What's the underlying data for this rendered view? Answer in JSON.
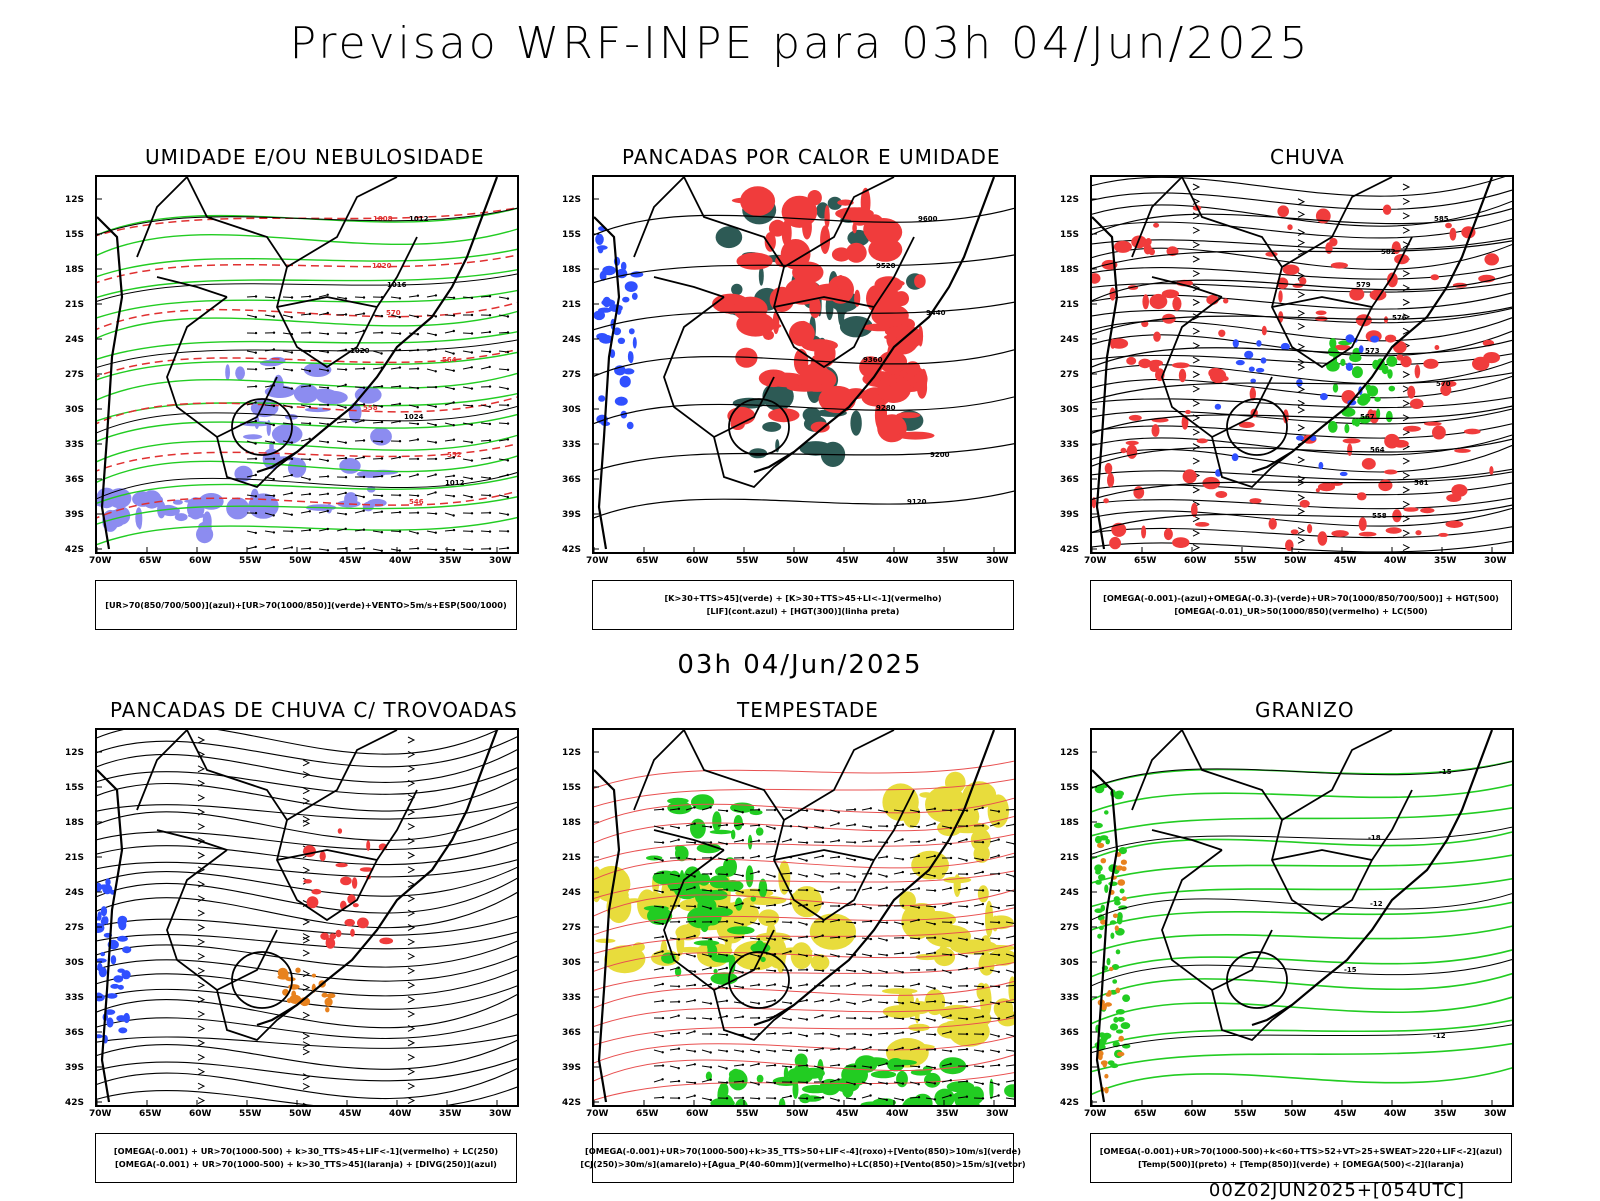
{
  "main_title": "Previsao WRF-INPE  para 03h 04/Jun/2025",
  "mid_date": "03h 04/Jun/2025",
  "footer_run": "00Z02JUN2025+[054UTC]",
  "axes": {
    "lat_labels": [
      "12S",
      "15S",
      "18S",
      "21S",
      "24S",
      "27S",
      "30S",
      "33S",
      "36S",
      "39S",
      "42S"
    ],
    "lon_labels": [
      "70W",
      "65W",
      "60W",
      "55W",
      "50W",
      "45W",
      "40W",
      "35W",
      "30W"
    ]
  },
  "panels": [
    {
      "id": "umidade",
      "title": "UMIDADE E/OU NEBULOSIDADE",
      "legend": [
        "[UR>70(850/700/500)](azul)+[UR>70(1000/850)](verde)+VENTO>5m/s+ESP(500/1000)"
      ],
      "contour_labels": [
        "1012",
        "1016",
        "1020",
        "1024",
        "1008",
        "1020",
        "570",
        "564",
        "558",
        "552",
        "546",
        "1012"
      ]
    },
    {
      "id": "pancadas-calor",
      "title": "PANCADAS POR CALOR E UMIDADE",
      "legend": [
        "[K>30+TTS>45](verde) + [K>30+TTS>45+LI<-1](vermelho)",
        "[LIF](cont.azul) + [HGT(300)](linha preta)"
      ],
      "contour_labels": [
        "9600",
        "9520",
        "9440",
        "9360",
        "9280",
        "9200",
        "9120",
        "9600",
        "9520",
        "9440",
        "9360",
        "9280",
        "9200"
      ]
    },
    {
      "id": "chuva",
      "title": "CHUVA",
      "legend": [
        "[OMEGA(-0.001)-(azul)+OMEGA(-0.3)-(verde)+UR>70(1000/850/700/500)] + HGT(500)",
        "[OMEGA(-0.01)_UR>50(1000/850)(vermelho) + LC(500)"
      ],
      "contour_labels": [
        "585",
        "582",
        "579",
        "576",
        "573",
        "570",
        "567",
        "564",
        "561",
        "558"
      ]
    },
    {
      "id": "pancadas-trovoadas",
      "title": "PANCADAS DE CHUVA C/ TROVOADAS",
      "legend": [
        "[OMEGA(-0.001) + UR>70(1000-500) + k>30_TTS>45+LIF<-1](vermelho) + LC(250)",
        "[OMEGA(-0.001) + UR>70(1000-500) + k>30_TTS>45](laranja) + [DIVG(250)](azul)"
      ],
      "contour_labels": []
    },
    {
      "id": "tempestade",
      "title": "TEMPESTADE",
      "legend": [
        "[OMEGA(-0.001)+UR>70(1000-500)+k>35_TTS>50+LIF<-4](roxo)+[Vento(850)>10m/s](verde)",
        "[CJ(250)>30m/s](amarelo)+[Agua_P(40-60mm)](vermelho)+LC(850)+[Vento(850)>15m/s](vetor)"
      ],
      "contour_labels": []
    },
    {
      "id": "granizo",
      "title": "GRANIZO",
      "legend": [
        "[OMEGA(-0.001)+UR>70(1000-500)+k<60+TTS>52+VT>25+SWEAT>220+LIF<-2](azul)",
        "[Temp(500)](preto) + [Temp(850)](verde) + [OMEGA(500)<-2](laranja)"
      ],
      "contour_labels": [
        "-15",
        "-18",
        "-12",
        "-15",
        "-12"
      ]
    }
  ],
  "colors": {
    "humid_green": "#22cc22",
    "humid_blue": "#8c8cf0",
    "red_fill": "#f03c3c",
    "dark_teal": "#2d5a55",
    "lif_blue": "#3050ff",
    "yellow_jet": "#e8dc3c",
    "orange_hail": "#e8821e"
  }
}
